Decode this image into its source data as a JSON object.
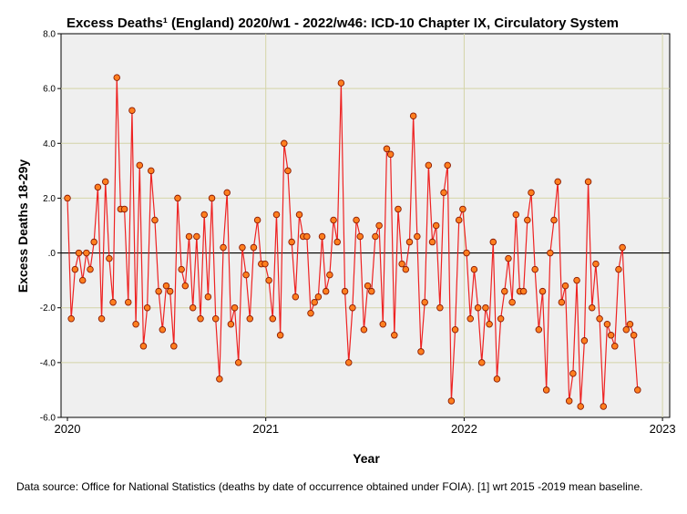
{
  "chart_data": {
    "type": "line",
    "title": "Excess Deaths¹ (England) 2020/w1 - 2022/w46: ICD-10 Chapter IX, Circulatory System",
    "xlabel": "Year",
    "ylabel": "Excess Deaths 18-29y",
    "xlim": [
      2020,
      2023
    ],
    "ylim": [
      -6,
      8
    ],
    "xticks": [
      2020,
      2021,
      2022,
      2023
    ],
    "xtick_labels": [
      "2020",
      "2021",
      "2022",
      "2023"
    ],
    "yticks": [
      -6,
      -4,
      -2,
      0,
      2,
      4,
      6,
      8
    ],
    "ytick_labels": [
      "-6.0",
      "-4.0",
      "-2.0",
      ".0",
      "2.0",
      "4.0",
      "6.0",
      "8.0"
    ],
    "reference_line_y": 0,
    "grid": true,
    "colors": {
      "line": "#ee2222",
      "marker_fill": "#ff7f1f",
      "marker_edge": "#8b1a00",
      "plot_bg": "#efefef",
      "grid": "#d4d4a8"
    },
    "series": [
      {
        "name": "Excess Deaths",
        "x_start": 2020,
        "x_step_weeks": 1,
        "weeks_per_year": 52.18,
        "values": [
          2.0,
          -2.4,
          -0.6,
          0.0,
          -1.0,
          0.0,
          -0.6,
          0.4,
          2.4,
          -2.4,
          2.6,
          -0.2,
          -1.8,
          6.4,
          1.6,
          1.6,
          -1.8,
          5.2,
          -2.6,
          3.2,
          -3.4,
          -2.0,
          3.0,
          1.2,
          -1.4,
          -2.8,
          -1.2,
          -1.4,
          -3.4,
          2.0,
          -0.6,
          -1.2,
          0.6,
          -2.0,
          0.6,
          -2.4,
          1.4,
          -1.6,
          2.0,
          -2.4,
          -4.6,
          0.2,
          2.2,
          -2.6,
          -2.0,
          -4.0,
          0.2,
          -0.8,
          -2.4,
          0.2,
          1.2,
          -0.4,
          -0.4,
          -1.0,
          -2.4,
          1.4,
          -3.0,
          4.0,
          3.0,
          0.4,
          -1.6,
          1.4,
          0.6,
          0.6,
          -2.2,
          -1.8,
          -1.6,
          0.6,
          -1.4,
          -0.8,
          1.2,
          0.4,
          6.2,
          -1.4,
          -4.0,
          -2.0,
          1.2,
          0.6,
          -2.8,
          -1.2,
          -1.4,
          0.6,
          1.0,
          -2.6,
          3.8,
          3.6,
          -3.0,
          1.6,
          -0.4,
          -0.6,
          0.4,
          5.0,
          0.6,
          -3.6,
          -1.8,
          3.2,
          0.4,
          1.0,
          -2.0,
          2.2,
          3.2,
          -5.4,
          -2.8,
          1.2,
          1.6,
          0.0,
          -2.4,
          -0.6,
          -2.0,
          -4.0,
          -2.0,
          -2.6,
          0.4,
          -4.6,
          -2.4,
          -1.4,
          -0.2,
          -1.8,
          1.4,
          -1.4,
          -1.4,
          1.2,
          2.2,
          -0.6,
          -2.8,
          -1.4,
          -5.0,
          0.0,
          1.2,
          2.6,
          -1.8,
          -1.2,
          -5.4,
          -4.4,
          -1.0,
          -5.6,
          -3.2,
          2.6,
          -2.0,
          -0.4,
          -2.4,
          -5.6,
          -2.6,
          -3.0,
          -3.4,
          -0.6,
          0.2,
          -2.8,
          -2.6,
          -3.0,
          -5.0
        ]
      }
    ]
  },
  "footnote": "Data source: Office for National Statistics (deaths by date of occurrence obtained under FOIA). [1] wrt 2015 -2019 mean baseline."
}
